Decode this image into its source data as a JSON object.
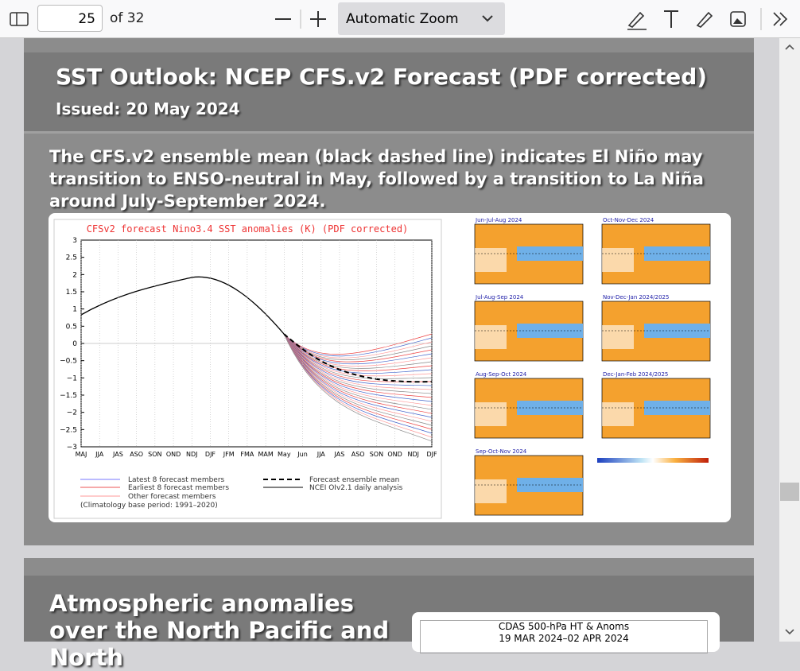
{
  "toolbar": {
    "page": "25",
    "page_count": "of 32",
    "zoom": "Automatic Zoom"
  },
  "slide1": {
    "title": "SST Outlook: NCEP CFS.v2 Forecast (PDF corrected)",
    "issued": "Issued: 20 May 2024",
    "body": "The CFS.v2 ensemble mean (black dashed line) indicates El Niño may transition to ENSO-neutral in May, followed by a transition to La Niña around July-September 2024.",
    "chart": {
      "title": "CFSv2 forecast Nino3.4 SST anomalies (K) (PDF corrected)",
      "yticks": [
        "3",
        "2.5",
        "2",
        "1.5",
        "1",
        "0.5",
        "0",
        "−0.5",
        "−1",
        "−1.5",
        "−2",
        "−2.5",
        "−3"
      ],
      "xticks": [
        "MAJ",
        "JJA",
        "JAS",
        "ASO",
        "SON",
        "OND",
        "NDJ",
        "DJF",
        "JFM",
        "FMA",
        "MAM",
        "May",
        "Jun",
        "JJA",
        "JAS",
        "ASO",
        "SON",
        "OND",
        "NDJ",
        "DJF"
      ],
      "legend": [
        "Latest 8 forecast members",
        "Earliest 8 forecast members",
        "Other forecast members",
        "(Climatology base period: 1991–2020)",
        "Forecast ensemble mean",
        "NCEI OIv2.1 daily analysis"
      ]
    },
    "maps": [
      "Jun-Jul-Aug 2024",
      "Oct-Nov-Dec 2024",
      "Jul-Aug-Sep 2024",
      "Nov-Dec-Jan 2024/2025",
      "Aug-Sep-Oct 2024",
      "Dec-Jan-Feb 2024/2025",
      "Sep-Oct-Nov 2024"
    ]
  },
  "slide2": {
    "title": "Atmospheric anomalies over the North Pacific and North",
    "panel_title": "CDAS 500-hPa HT & Anoms",
    "panel_sub": "19 MAR 2024–02 APR 2024"
  }
}
